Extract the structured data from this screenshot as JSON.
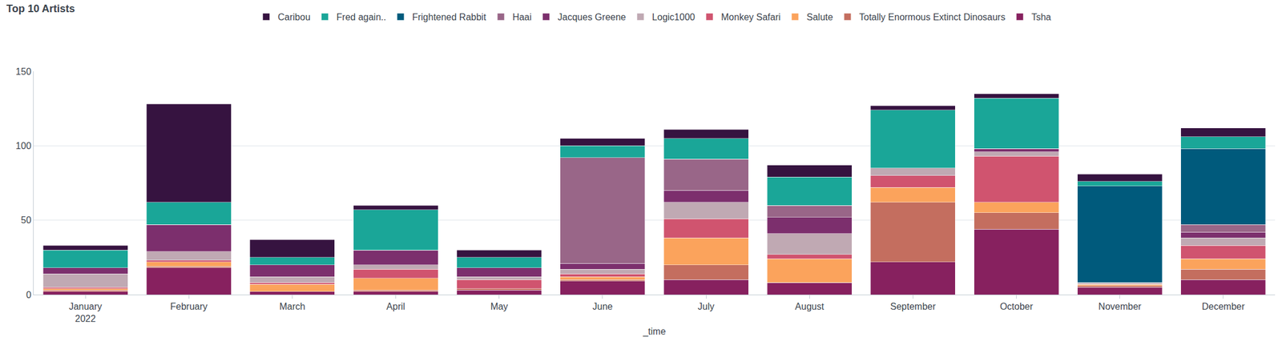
{
  "chart_data": {
    "type": "bar",
    "title": "Top 10 Artists",
    "x_label": "_time",
    "categories": [
      "January\n2022",
      "February",
      "March",
      "April",
      "May",
      "June",
      "July",
      "August",
      "September",
      "October",
      "November",
      "December"
    ],
    "stacked": true,
    "legend": "top",
    "grid": true,
    "ylim": [
      0,
      150
    ],
    "yticks": [
      0,
      50,
      100,
      150
    ],
    "series": [
      {
        "name": "Caribou",
        "color": "#361340",
        "values": [
          3,
          66,
          12,
          3,
          5,
          5,
          6,
          8,
          3,
          3,
          5,
          6
        ]
      },
      {
        "name": "Fred again..",
        "color": "#1aa698",
        "values": [
          12,
          15,
          5,
          27,
          7,
          8,
          14,
          19,
          39,
          34,
          3,
          8
        ]
      },
      {
        "name": "Frightened Rabbit",
        "color": "#005a7c",
        "values": [
          0,
          0,
          0,
          0,
          0,
          0,
          0,
          0,
          0,
          0,
          65,
          51
        ]
      },
      {
        "name": "Haai",
        "color": "#996688",
        "values": [
          0,
          0,
          0,
          0,
          0,
          71,
          21,
          8,
          0,
          0,
          0,
          5
        ]
      },
      {
        "name": "Jacques Greene",
        "color": "#7c2f6d",
        "values": [
          4,
          18,
          8,
          10,
          6,
          4,
          8,
          11,
          0,
          2,
          0,
          4
        ]
      },
      {
        "name": "Logic1000",
        "color": "#c0a9b3",
        "values": [
          9,
          6,
          4,
          3,
          2,
          3,
          11,
          14,
          5,
          3,
          1,
          5
        ]
      },
      {
        "name": "Monkey Safari",
        "color": "#d0546f",
        "values": [
          1,
          1,
          1,
          6,
          6,
          2,
          13,
          3,
          8,
          31,
          0,
          9
        ]
      },
      {
        "name": "Salute",
        "color": "#fba35c",
        "values": [
          1,
          3,
          5,
          8,
          0,
          2,
          18,
          16,
          10,
          7,
          1,
          7
        ]
      },
      {
        "name": "Totally Enormous Extinct Dinosaurs",
        "color": "#c46e5f",
        "values": [
          1,
          1,
          0,
          1,
          1,
          1,
          10,
          0,
          40,
          11,
          1,
          7
        ]
      },
      {
        "name": "Tsha",
        "color": "#87215f",
        "values": [
          2,
          18,
          2,
          2,
          3,
          9,
          10,
          8,
          22,
          44,
          5,
          10
        ]
      }
    ]
  }
}
